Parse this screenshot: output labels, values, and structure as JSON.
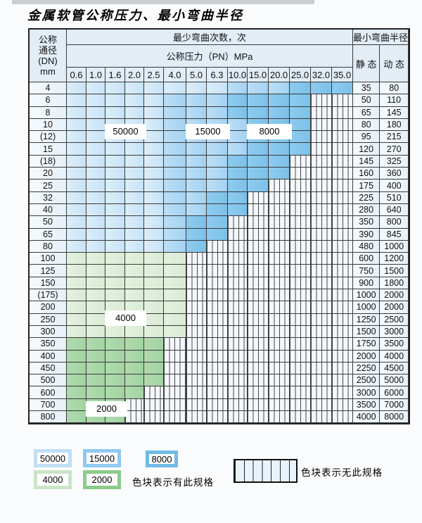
{
  "title": "金属软管公称压力、最小弯曲半径",
  "table": {
    "dn_header_lines": [
      "公称",
      "通径",
      "(DN)",
      "mm"
    ],
    "cycles_header": "最少弯曲次数，次",
    "pressure_header": "公称压力（PN）MPa",
    "pressure_columns": [
      "0.6",
      "1.0",
      "1.6",
      "2.0",
      "2.5",
      "4.0",
      "5.0",
      "6.3",
      "10.0",
      "15.0",
      "20.0",
      "25.0",
      "32.0",
      "35.0"
    ],
    "radius_header": "最小弯曲半径",
    "static_label": "静 态",
    "dynamic_label": "动 态",
    "cell_code_key": {
      "L": "50000",
      "M": "15000",
      "D": "8000",
      "G": "4000",
      "g": "2000",
      "H": "no-spec"
    },
    "rows": [
      {
        "dn": "4",
        "cells": "LLLLLLLLMMMDDD",
        "static": "35",
        "dynamic": "80"
      },
      {
        "dn": "6",
        "cells": "LLLLLMMMDDDDHH",
        "static": "50",
        "dynamic": "110"
      },
      {
        "dn": "8",
        "cells": "LLLLLMMMDDDDHH",
        "static": "65",
        "dynamic": "145"
      },
      {
        "dn": "10",
        "cells": "LLLLLMMMMDDDHH",
        "static": "80",
        "dynamic": "180"
      },
      {
        "dn": "(12)",
        "cells": "LLLLLMMMMDDDHH",
        "static": "95",
        "dynamic": "215"
      },
      {
        "dn": "15",
        "cells": "LLLLLMMMMDDDHH",
        "static": "120",
        "dynamic": "270"
      },
      {
        "dn": "(18)",
        "cells": "LLLLLMMMDDDHHH",
        "static": "145",
        "dynamic": "325"
      },
      {
        "dn": "20",
        "cells": "LLLLLMMMDDDHHH",
        "static": "160",
        "dynamic": "360"
      },
      {
        "dn": "25",
        "cells": "LLLLLMMMDDHHHH",
        "static": "175",
        "dynamic": "400"
      },
      {
        "dn": "32",
        "cells": "LLLLLMMDDHHHHH",
        "static": "225",
        "dynamic": "510"
      },
      {
        "dn": "40",
        "cells": "LLLLLMMDDHHHHH",
        "static": "280",
        "dynamic": "640"
      },
      {
        "dn": "50",
        "cells": "LLLLLMDDHHHHHH",
        "static": "350",
        "dynamic": "800"
      },
      {
        "dn": "65",
        "cells": "LLLLLMDDHHHHHH",
        "static": "390",
        "dynamic": "845"
      },
      {
        "dn": "80",
        "cells": "LLLLLMDHHHHHHH",
        "static": "480",
        "dynamic": "1000"
      },
      {
        "dn": "100",
        "cells": "GGGGGGHHHHHHHH",
        "static": "600",
        "dynamic": "1200"
      },
      {
        "dn": "125",
        "cells": "GGGGGGHHHHHHHH",
        "static": "750",
        "dynamic": "1500"
      },
      {
        "dn": "150",
        "cells": "GGGGGGHHHHHHHH",
        "static": "900",
        "dynamic": "1800"
      },
      {
        "dn": "(175)",
        "cells": "GGGGGGHHHHHHHH",
        "static": "1000",
        "dynamic": "2000"
      },
      {
        "dn": "200",
        "cells": "GGGGGGHHHHHHHH",
        "static": "1000",
        "dynamic": "2000"
      },
      {
        "dn": "250",
        "cells": "GGGGGGHHHHHHHH",
        "static": "1250",
        "dynamic": "2500"
      },
      {
        "dn": "300",
        "cells": "GGGGGGHHHHHHHH",
        "static": "1500",
        "dynamic": "3000"
      },
      {
        "dn": "350",
        "cells": "gggggHHHHHHHHH",
        "static": "1750",
        "dynamic": "3500"
      },
      {
        "dn": "400",
        "cells": "gggggHHHHHHHHH",
        "static": "2000",
        "dynamic": "4000"
      },
      {
        "dn": "450",
        "cells": "gggggHHHHHHHHH",
        "static": "2250",
        "dynamic": "4500"
      },
      {
        "dn": "500",
        "cells": "gggggHHHHHHHHH",
        "static": "2500",
        "dynamic": "5000"
      },
      {
        "dn": "600",
        "cells": "ggggHHHHHHHHHH",
        "static": "3000",
        "dynamic": "6000"
      },
      {
        "dn": "700",
        "cells": "gggHHHHHHHHHHH",
        "static": "3500",
        "dynamic": "7000"
      },
      {
        "dn": "800",
        "cells": "gggHHHHHHHHHHH",
        "static": "4000",
        "dynamic": "8000"
      }
    ]
  },
  "cycle_labels": [
    {
      "text": "50000",
      "row_dn": "10",
      "from_col": "1.6",
      "to_col": "2.0"
    },
    {
      "text": "15000",
      "row_dn": "10",
      "from_col": "5.0",
      "to_col": "6.3"
    },
    {
      "text": "8000",
      "row_dn": "10",
      "from_col": "15.0",
      "to_col": "20.0"
    },
    {
      "text": "4000",
      "row_dn": "200",
      "from_col": "1.6",
      "to_col": "2.0"
    },
    {
      "text": "2000",
      "row_dn": "600",
      "from_col": "1.0",
      "to_col": "1.6"
    }
  ],
  "legend": {
    "items": [
      {
        "label": "50000",
        "color": "#BFDFF5"
      },
      {
        "label": "15000",
        "color": "#8FCAF0"
      },
      {
        "label": "8000",
        "color": "#6FBCE8"
      },
      {
        "label": "4000",
        "color": "#CBE5C6"
      },
      {
        "label": "2000",
        "color": "#8CCB8C"
      }
    ],
    "has_spec_text": "色块表示有此规格",
    "no_spec_text": "色块表示无此规格"
  },
  "colors": {
    "cycles_50000": "#C7E3F6",
    "cycles_15000": "#A3D2F1",
    "cycles_8000": "#7BC1EA",
    "cycles_4000": "#D9EBD4",
    "cycles_2000": "#A2D4A2"
  }
}
